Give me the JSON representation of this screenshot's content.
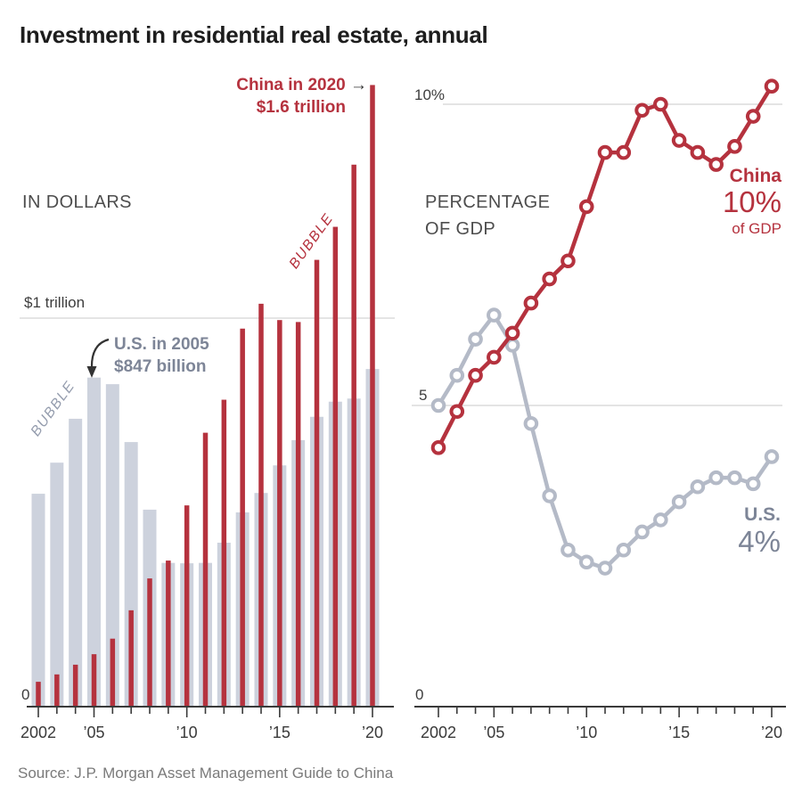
{
  "title": "Investment in residential real estate, annual",
  "source": "Source: J.P. Morgan Asset Management Guide to China",
  "colors": {
    "china_red": "#b5323e",
    "us_bar_gray": "#cdd2dd",
    "us_line_gray": "#b4bac7",
    "us_label_gray": "#7d8597",
    "axis": "#3a3a3a",
    "gridline": "#dcdcdc",
    "arrow": "#333333"
  },
  "chart_data": [
    {
      "type": "bar",
      "panel_label": "IN DOLLARS",
      "title": "Investment in residential real estate, annual (in dollars)",
      "categories": [
        2002,
        2003,
        2004,
        2005,
        2006,
        2007,
        2008,
        2009,
        2010,
        2011,
        2012,
        2013,
        2014,
        2015,
        2016,
        2017,
        2018,
        2019,
        2020
      ],
      "x_tick_labels": [
        "2002",
        "’05",
        "’10",
        "’15",
        "’20"
      ],
      "labeled_year_indices": [
        0,
        3,
        8,
        13,
        18
      ],
      "ylim_billions": [
        0,
        1650
      ],
      "y_gridline_billions": 1000,
      "y_gridline_label": "$1 trillion",
      "y_zero_label": "0",
      "series": [
        {
          "name": "U.S.",
          "color_key": "us_bar_gray",
          "values_billions": [
            548,
            628,
            741,
            847,
            830,
            681,
            507,
            370,
            369,
            370,
            422,
            500,
            550,
            621,
            686,
            746,
            785,
            793,
            869
          ]
        },
        {
          "name": "China",
          "color_key": "china_red",
          "values_billions": [
            64,
            83,
            108,
            135,
            175,
            248,
            330,
            376,
            518,
            705,
            790,
            973,
            1037,
            995,
            990,
            1150,
            1235,
            1395,
            1600
          ]
        }
      ],
      "annotations": {
        "china_2020": {
          "line1": "China in 2020",
          "arrow": "→",
          "line2": "$1.6 trillion"
        },
        "us_2005": {
          "line1": "U.S. in 2005",
          "line2": "$847 billion"
        },
        "bubble_us": "BUBBLE",
        "bubble_china": "BUBBLE"
      }
    },
    {
      "type": "line",
      "panel_label_line1": "PERCENTAGE",
      "panel_label_line2": "OF GDP",
      "title": "Investment in residential real estate, annual (percentage of GDP)",
      "categories": [
        2002,
        2003,
        2004,
        2005,
        2006,
        2007,
        2008,
        2009,
        2010,
        2011,
        2012,
        2013,
        2014,
        2015,
        2016,
        2017,
        2018,
        2019,
        2020
      ],
      "x_tick_labels": [
        "2002",
        "’05",
        "’10",
        "’15",
        "’20"
      ],
      "labeled_year_indices": [
        0,
        3,
        8,
        13,
        18
      ],
      "ylim_pct": [
        0,
        10.5
      ],
      "y_gridlines_pct": [
        5,
        10
      ],
      "y_tick_labels": {
        "ten": "10%",
        "five": "5",
        "zero": "0"
      },
      "series": [
        {
          "name": "U.S.",
          "color_key": "us_line_gray",
          "values_pct": [
            5.0,
            5.5,
            6.1,
            6.5,
            6.0,
            4.7,
            3.5,
            2.6,
            2.4,
            2.3,
            2.6,
            2.9,
            3.1,
            3.4,
            3.65,
            3.8,
            3.8,
            3.7,
            4.15
          ]
        },
        {
          "name": "China",
          "color_key": "china_red",
          "values_pct": [
            4.3,
            4.9,
            5.5,
            5.8,
            6.2,
            6.7,
            7.1,
            7.4,
            8.3,
            9.2,
            9.2,
            9.9,
            10.0,
            9.4,
            9.2,
            9.0,
            9.3,
            9.8,
            10.3
          ]
        }
      ],
      "end_labels": {
        "china": {
          "name": "China",
          "big": "10%",
          "small": "of GDP"
        },
        "us": {
          "name": "U.S.",
          "big": "4%"
        }
      }
    }
  ]
}
